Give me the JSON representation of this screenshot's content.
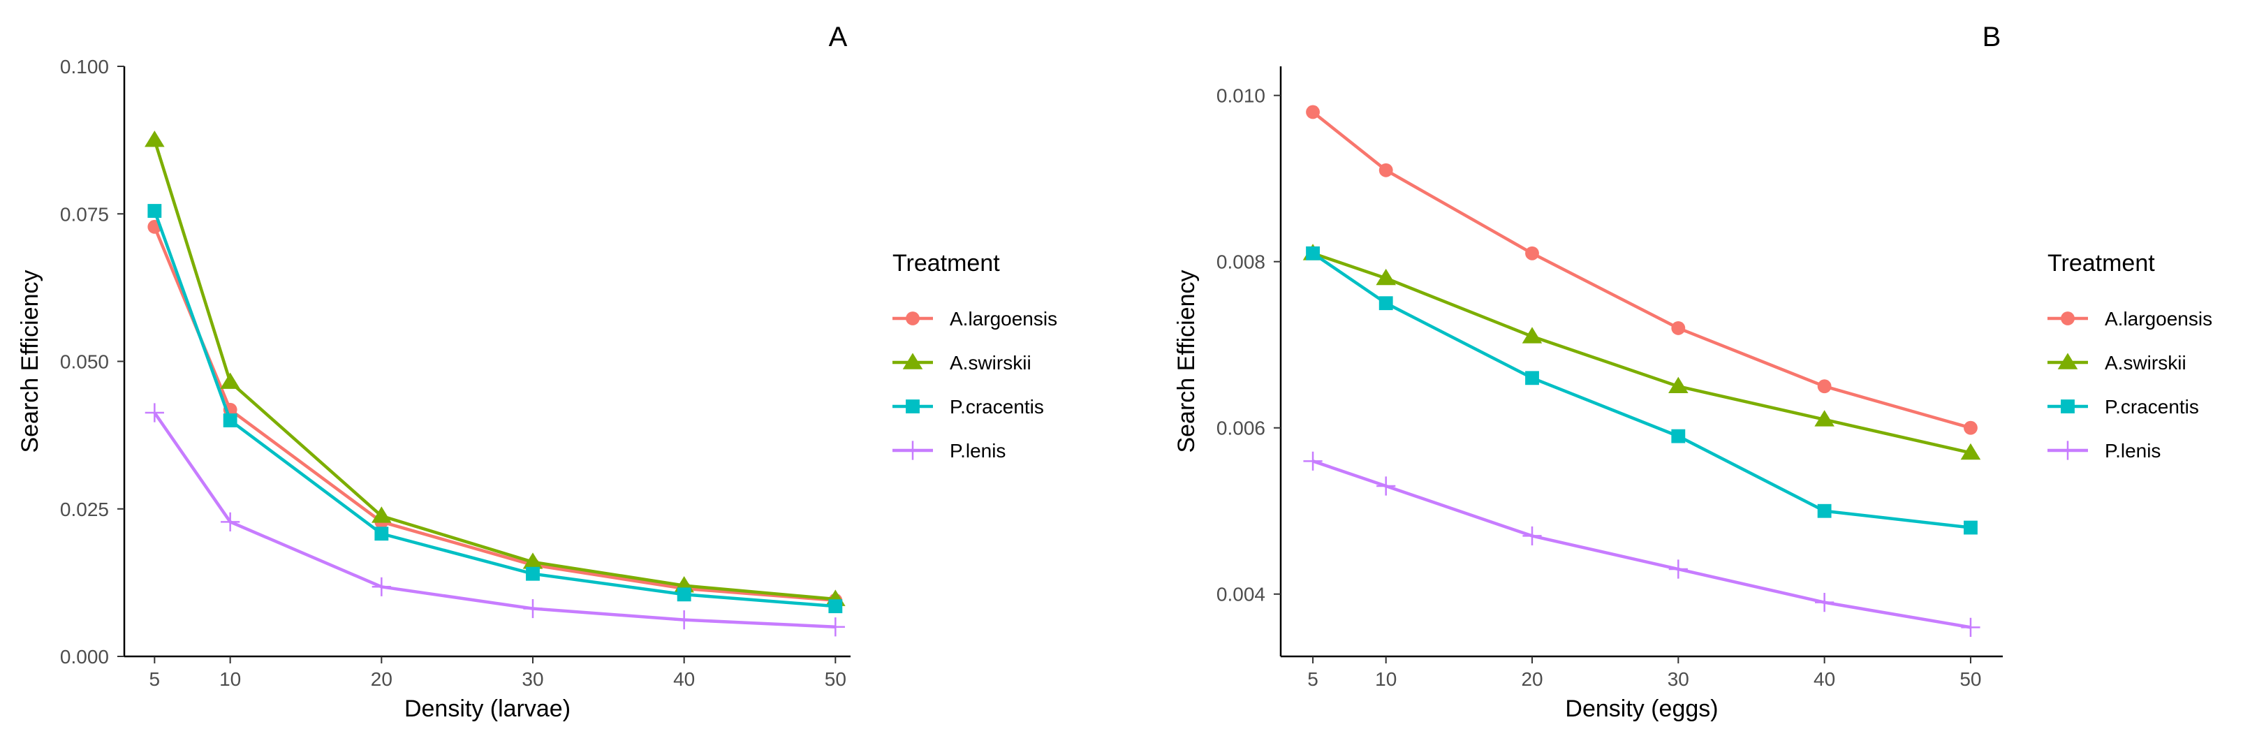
{
  "legend_title": "Treatment",
  "colors": {
    "A.largoensis": "#F8766D",
    "A.swirskii": "#7CAE00",
    "P.cracentis": "#00BFC4",
    "P.lenis": "#C77CFF"
  },
  "chart_data": [
    {
      "type": "line",
      "panel": "A",
      "xlabel": "Density (larvae)",
      "ylabel": "Search Efficiency",
      "x": [
        5,
        10,
        20,
        30,
        40,
        50
      ],
      "xticks": [
        "5",
        "10",
        "20",
        "30",
        "40",
        "50"
      ],
      "xlim": [
        3,
        51
      ],
      "ylim": [
        0,
        0.1
      ],
      "yticks": [
        "0.000",
        "0.025",
        "0.050",
        "0.075",
        "0.100"
      ],
      "ytick_values": [
        0,
        0.025,
        0.05,
        0.075,
        0.1
      ],
      "grid": false,
      "legend_position": "right",
      "series": [
        {
          "name": "A.largoensis",
          "marker": "circle",
          "values": [
            0.0728,
            0.0418,
            0.0228,
            0.0155,
            0.0115,
            0.0095
          ]
        },
        {
          "name": "A.swirskii",
          "marker": "triangle",
          "values": [
            0.0875,
            0.0465,
            0.0238,
            0.016,
            0.012,
            0.0097
          ]
        },
        {
          "name": "P.cracentis",
          "marker": "square",
          "values": [
            0.0755,
            0.04,
            0.0208,
            0.014,
            0.0105,
            0.0085
          ]
        },
        {
          "name": "P.lenis",
          "marker": "cross",
          "values": [
            0.0413,
            0.0228,
            0.0118,
            0.0081,
            0.0062,
            0.005
          ]
        }
      ]
    },
    {
      "type": "line",
      "panel": "B",
      "xlabel": "Density (eggs)",
      "ylabel": "Search Efficiency",
      "x": [
        5,
        10,
        20,
        30,
        40,
        50
      ],
      "xticks": [
        "5",
        "10",
        "20",
        "30",
        "40",
        "50"
      ],
      "xlim": [
        2.8,
        52.2
      ],
      "ylim": [
        0.00325,
        0.01035
      ],
      "yticks": [
        "0.004",
        "0.006",
        "0.008",
        "0.010"
      ],
      "ytick_values": [
        0.004,
        0.006,
        0.008,
        0.01
      ],
      "grid": false,
      "legend_position": "right",
      "series": [
        {
          "name": "A.largoensis",
          "marker": "circle",
          "values": [
            0.0098,
            0.0091,
            0.0081,
            0.0072,
            0.0065,
            0.006
          ]
        },
        {
          "name": "A.swirskii",
          "marker": "triangle",
          "values": [
            0.0081,
            0.0078,
            0.0071,
            0.0065,
            0.0061,
            0.0057
          ]
        },
        {
          "name": "P.cracentis",
          "marker": "square",
          "values": [
            0.0081,
            0.0075,
            0.0066,
            0.0059,
            0.005,
            0.0048
          ]
        },
        {
          "name": "P.lenis",
          "marker": "cross",
          "values": [
            0.0056,
            0.0053,
            0.0047,
            0.0043,
            0.0039,
            0.0036
          ]
        }
      ]
    }
  ]
}
